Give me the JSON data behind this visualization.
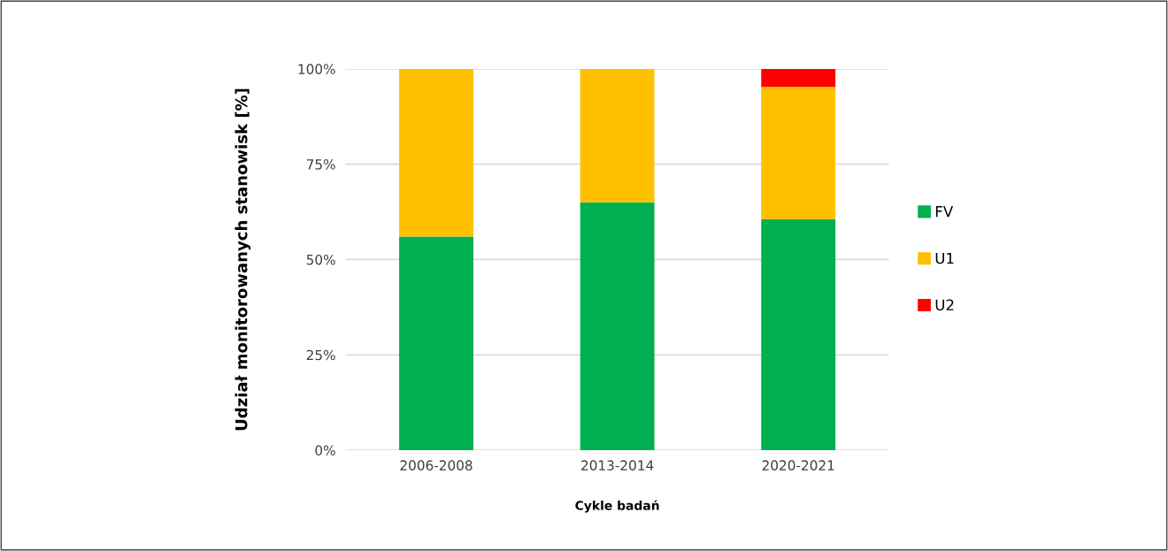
{
  "chart_data": {
    "type": "bar",
    "stacked": true,
    "xlabel": "Cykle badań",
    "ylabel": "Udział monitorowanych stanowisk [%]",
    "categories": [
      "2006-2008",
      "2013-2014",
      "2020-2021"
    ],
    "series": [
      {
        "name": "FV",
        "color": "#00b050",
        "values": [
          56,
          65,
          60.6
        ]
      },
      {
        "name": "U1",
        "color": "#ffc000",
        "values": [
          44,
          35,
          34.7
        ]
      },
      {
        "name": "U2",
        "color": "#ff0000",
        "values": [
          0,
          0,
          4.7
        ]
      }
    ],
    "ylim": [
      0,
      100
    ],
    "yticks": [
      {
        "value": 0,
        "label": "0%"
      },
      {
        "value": 25,
        "label": "25%"
      },
      {
        "value": 50,
        "label": "50%"
      },
      {
        "value": 75,
        "label": "75%"
      },
      {
        "value": 100,
        "label": "100%"
      }
    ],
    "grid": "y",
    "legend": "right"
  }
}
